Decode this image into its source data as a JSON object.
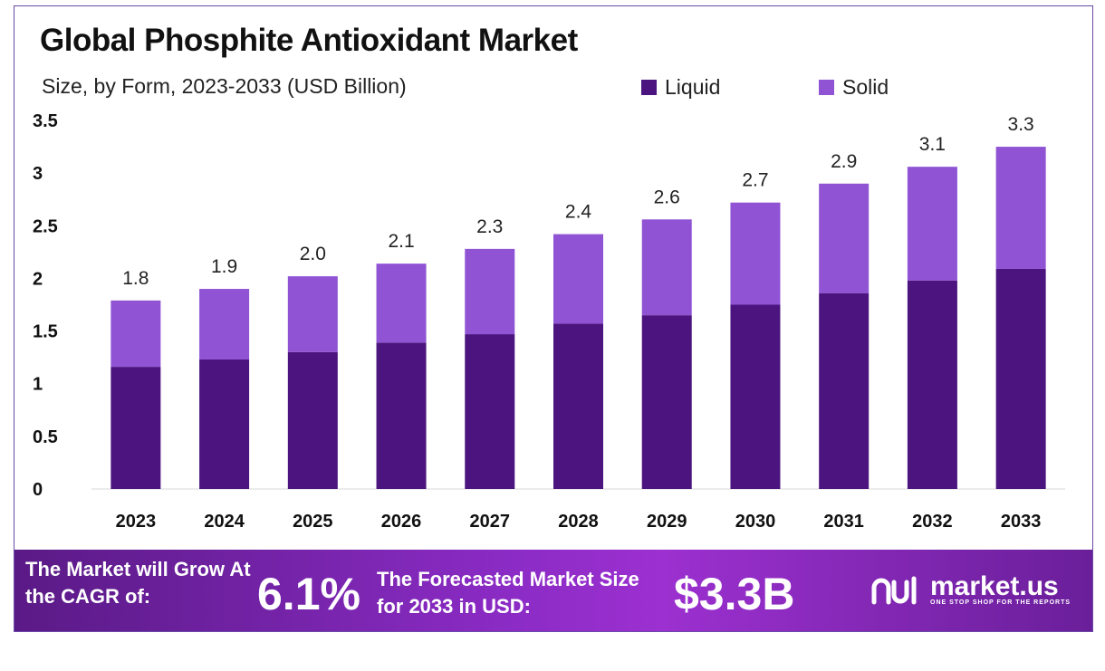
{
  "title": "Global Phosphite Antioxidant Market",
  "subtitle": "Size, by Form, 2023-2033 (USD Billion)",
  "legend": {
    "liquid": {
      "label": "Liquid",
      "color": "#4b147e"
    },
    "solid": {
      "label": "Solid",
      "color": "#8f53d4"
    }
  },
  "chart_data": {
    "type": "bar",
    "stacked": true,
    "categories": [
      "2023",
      "2024",
      "2025",
      "2026",
      "2027",
      "2028",
      "2029",
      "2030",
      "2031",
      "2032",
      "2033"
    ],
    "series": [
      {
        "name": "Liquid",
        "color": "#4b147e",
        "values": [
          1.16,
          1.23,
          1.3,
          1.39,
          1.47,
          1.57,
          1.65,
          1.75,
          1.86,
          1.98,
          2.09
        ]
      },
      {
        "name": "Solid",
        "color": "#8f53d4",
        "values": [
          0.63,
          0.67,
          0.72,
          0.75,
          0.81,
          0.85,
          0.91,
          0.97,
          1.04,
          1.08,
          1.16
        ]
      }
    ],
    "totals": [
      "1.8",
      "1.9",
      "2.0",
      "2.1",
      "2.3",
      "2.4",
      "2.6",
      "2.7",
      "2.9",
      "3.1",
      "3.3"
    ],
    "ylim": [
      0,
      3.5
    ],
    "yticks": [
      0,
      0.5,
      1,
      1.5,
      2,
      2.5,
      3,
      3.5
    ],
    "ytick_labels": [
      "0",
      "0.5",
      "1",
      "1.5",
      "2",
      "2.5",
      "3",
      "3.5"
    ],
    "grid": false,
    "legend_position": "top-right"
  },
  "banner": {
    "cagr_text": "The Market will Grow At the CAGR of:",
    "cagr_value": "6.1%",
    "forecast_text": "The Forecasted Market Size for 2033 in USD:",
    "forecast_value": "$3.3B",
    "brand_name": "market.us",
    "brand_tagline": "ONE STOP SHOP FOR THE REPORTS"
  }
}
